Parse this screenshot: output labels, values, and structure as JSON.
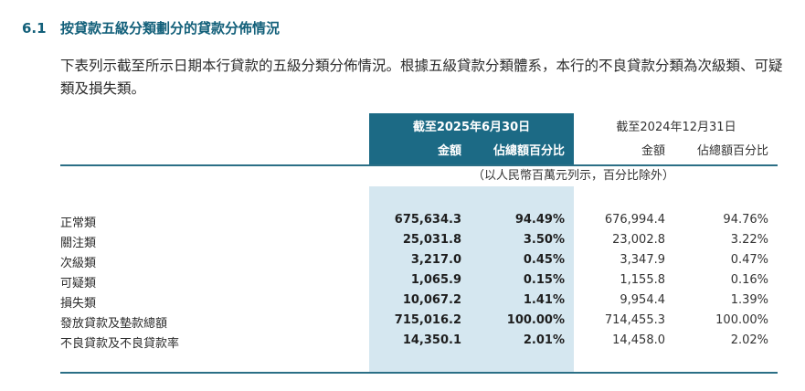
{
  "section": {
    "number": "6.1",
    "title": "按貸款五級分類劃分的貸款分佈情況"
  },
  "intro_text": "下表列示截至所示日期本行貸款的五級分類分佈情況。根據五級貸款分類體系，本行的不良貸款分類為次級類、可疑類及損失類。",
  "table": {
    "current_period": {
      "label": "截至2025年6月30日",
      "amount_header": "金額",
      "percent_header": "佔總額百分比"
    },
    "previous_period": {
      "label": "截至2024年12月31日",
      "amount_header": "金額",
      "percent_header": "佔總額百分比"
    },
    "unit_note": "（以人民幣百萬元列示，百分比除外）",
    "rows": [
      {
        "label": "正常類",
        "cur_amount": "675,634.3",
        "cur_pct": "94.49%",
        "prev_amount": "676,994.4",
        "prev_pct": "94.76%"
      },
      {
        "label": "關注類",
        "cur_amount": "25,031.8",
        "cur_pct": "3.50%",
        "prev_amount": "23,002.8",
        "prev_pct": "3.22%"
      },
      {
        "label": "次級類",
        "cur_amount": "3,217.0",
        "cur_pct": "0.45%",
        "prev_amount": "3,347.9",
        "prev_pct": "0.47%"
      },
      {
        "label": "可疑類",
        "cur_amount": "1,065.9",
        "cur_pct": "0.15%",
        "prev_amount": "1,155.8",
        "prev_pct": "0.16%"
      },
      {
        "label": "損失類",
        "cur_amount": "10,067.2",
        "cur_pct": "1.41%",
        "prev_amount": "9,954.4",
        "prev_pct": "1.39%"
      },
      {
        "label": "發放貸款及墊款總額",
        "cur_amount": "715,016.2",
        "cur_pct": "100.00%",
        "prev_amount": "714,455.3",
        "prev_pct": "100.00%"
      },
      {
        "label": "不良貸款及不良貸款率",
        "cur_amount": "14,350.1",
        "cur_pct": "2.01%",
        "prev_amount": "14,458.0",
        "prev_pct": "2.02%"
      }
    ]
  },
  "colors": {
    "heading": "#13607a",
    "header_fill": "#1c6a85",
    "column_highlight": "#d5e7f0",
    "rule": "#2b6f86"
  }
}
